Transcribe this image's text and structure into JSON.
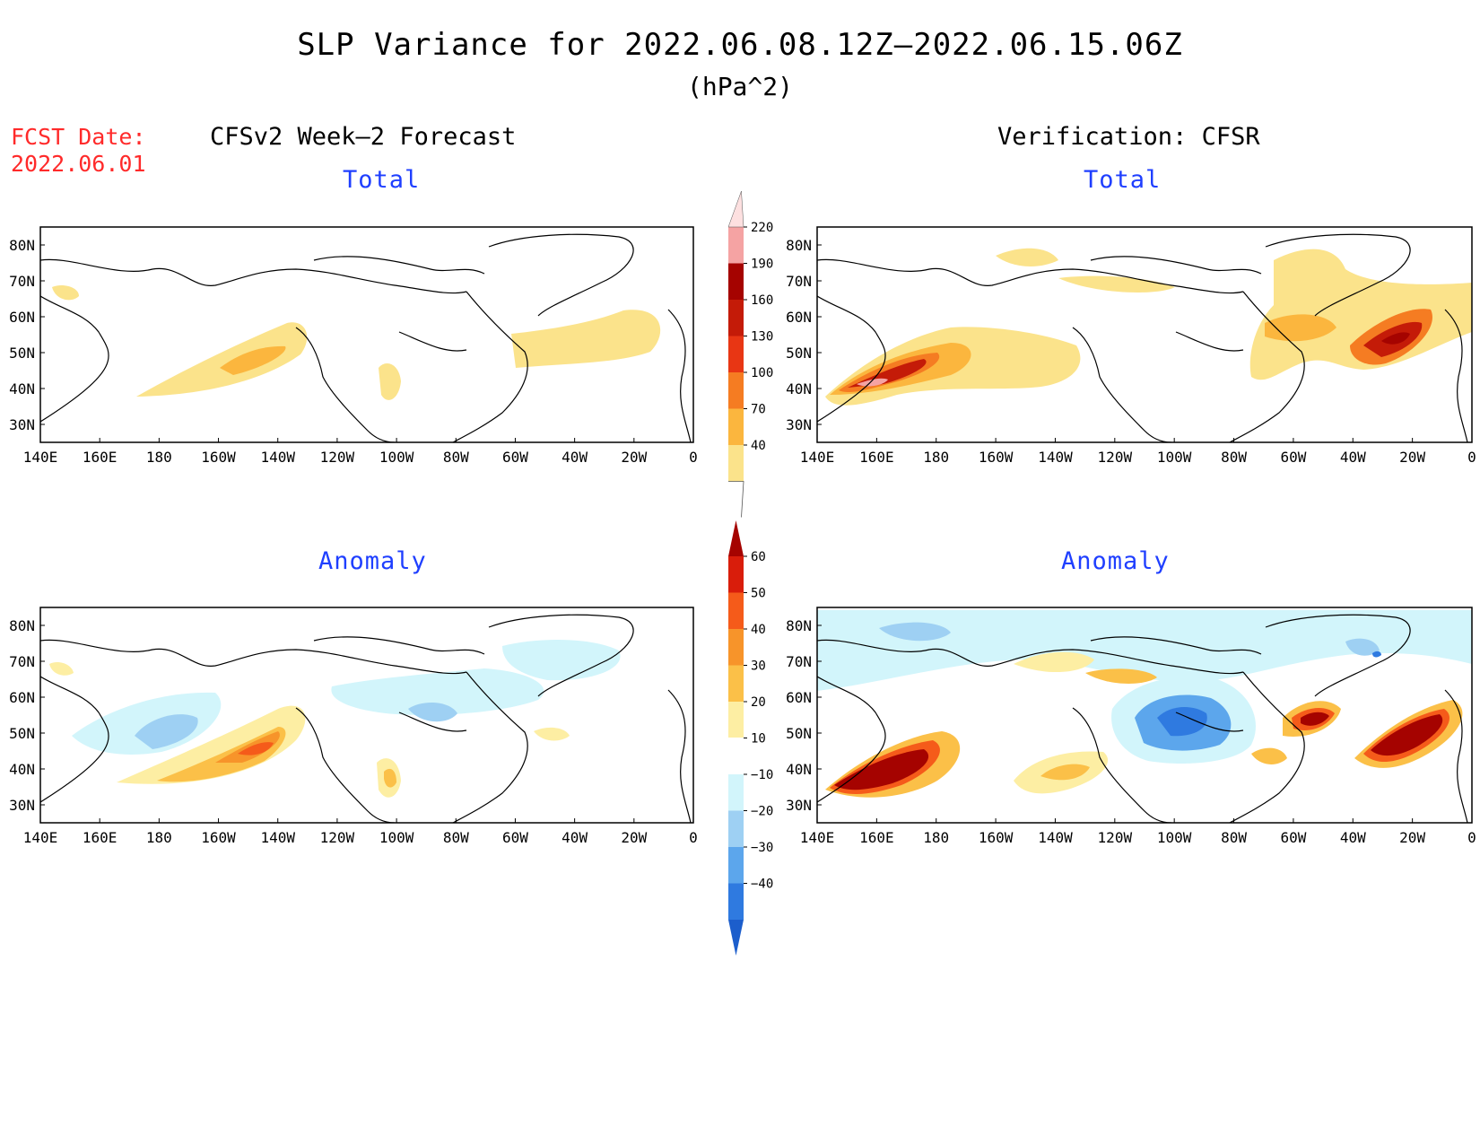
{
  "title": "SLP Variance for 2022.06.08.12Z–2022.06.15.06Z",
  "units": "(hPa^2)",
  "fcst_label": "FCST Date:",
  "fcst_date": "2022.06.01",
  "column_titles": [
    "CFSv2 Week–2 Forecast",
    "Verification: CFSR"
  ],
  "panel_titles": [
    "Total",
    "Total",
    "Anomaly",
    "Anomaly"
  ],
  "axes": {
    "lon_labels": [
      "140E",
      "160E",
      "180",
      "160W",
      "140W",
      "120W",
      "100W",
      "80W",
      "60W",
      "40W",
      "20W",
      "0"
    ],
    "lat_labels": [
      "80N",
      "70N",
      "60N",
      "50N",
      "40N",
      "30N"
    ],
    "lon_range": [
      140,
      360
    ],
    "lat_range": [
      25,
      85
    ]
  },
  "colorbars": {
    "total": {
      "levels": [
        "40",
        "70",
        "100",
        "130",
        "160",
        "190",
        "220"
      ],
      "colors": [
        "#fbe38b",
        "#fbb63e",
        "#f57c22",
        "#e83614",
        "#c41b08",
        "#a50300",
        "#f5a3a3",
        "#fde0e0"
      ]
    },
    "anomaly": {
      "levels": [
        "60",
        "50",
        "40",
        "30",
        "20",
        "10",
        "−10",
        "−20",
        "−30",
        "−40"
      ],
      "colors": [
        "#a50300",
        "#d91d0b",
        "#f55b1a",
        "#f7942a",
        "#fbc048",
        "#fdeeA3",
        "#ffffff",
        "#d2f5fb",
        "#9ed0f3",
        "#5ca6ec",
        "#2f7ae0",
        "#1c5ecc"
      ]
    }
  },
  "colors": {
    "title_text": "#000000",
    "fcst_text": "#ff2a2a",
    "panel_title_text": "#1f3fff"
  }
}
